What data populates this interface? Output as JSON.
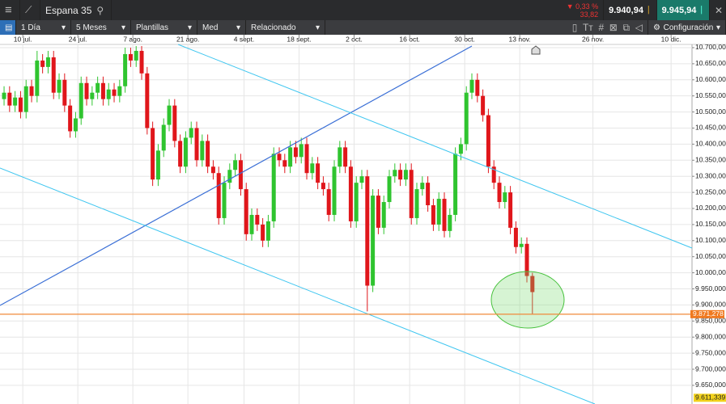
{
  "toolbar": {
    "symbol": "Espana 35",
    "change_pct": "▼ 0,33 %",
    "change_abs": "33,82",
    "sell": "9.940,94",
    "buy": "9.945,94",
    "interval": "1 Día",
    "range": "5 Meses",
    "templates": "Plantillas",
    "indicator": "Med",
    "related": "Relacionado",
    "settings": "Configuración"
  },
  "chart_data": {
    "type": "candlestick",
    "up_color": "#2fc42f",
    "down_color": "#e0161b",
    "grid": true,
    "x": [
      0,
      1,
      2,
      3,
      4,
      5,
      6,
      7,
      8,
      9,
      10,
      11,
      12,
      13,
      14,
      15,
      16,
      17,
      18,
      19,
      20,
      21,
      22,
      23,
      24,
      25,
      26,
      27,
      28,
      29,
      30,
      31,
      32,
      33,
      34,
      35,
      36,
      37,
      38,
      39,
      40,
      41,
      42,
      43,
      44,
      45,
      46,
      47,
      48,
      49,
      50,
      51,
      52,
      53,
      54,
      55,
      56,
      57,
      58,
      59,
      60,
      61,
      62,
      63,
      64,
      65,
      66,
      67,
      68,
      69,
      70,
      71,
      72,
      73,
      74,
      75,
      76,
      77,
      78,
      79,
      80,
      81,
      82,
      83,
      84,
      85,
      86,
      87,
      88,
      89,
      90,
      91,
      92,
      93,
      94,
      95,
      96
    ],
    "open": [
      10540,
      10560,
      10520,
      10545,
      10500,
      10580,
      10550,
      10660,
      10640,
      10670,
      10560,
      10600,
      10520,
      10440,
      10480,
      10590,
      10540,
      10560,
      10590,
      10540,
      10570,
      10550,
      10580,
      10680,
      10660,
      10690,
      10620,
      10450,
      10290,
      10380,
      10460,
      10520,
      10410,
      10330,
      10420,
      10450,
      10350,
      10410,
      10330,
      10310,
      10170,
      10280,
      10320,
      10350,
      10260,
      10120,
      10180,
      10150,
      10100,
      10160,
      10370,
      10350,
      10330,
      10390,
      10360,
      10400,
      10310,
      10340,
      10280,
      10260,
      10180,
      10330,
      10390,
      10330,
      10160,
      10280,
      10300,
      9960,
      10240,
      10140,
      10220,
      10300,
      10320,
      10290,
      10320,
      10170,
      10260,
      10280,
      10210,
      10150,
      10230,
      10130,
      10180,
      10370,
      10400,
      10560,
      10600,
      10550,
      10490,
      10330,
      10280,
      10220,
      10250,
      10140,
      10080,
      10090,
      9990
    ],
    "high": [
      10580,
      10580,
      10565,
      10565,
      10600,
      10600,
      10690,
      10680,
      10690,
      10690,
      10620,
      10620,
      10540,
      10500,
      10610,
      10610,
      10580,
      10610,
      10610,
      10590,
      10590,
      10600,
      10700,
      10700,
      10705,
      10705,
      10640,
      10470,
      10400,
      10480,
      10540,
      10540,
      10430,
      10440,
      10470,
      10470,
      10430,
      10430,
      10350,
      10330,
      10300,
      10340,
      10370,
      10370,
      10280,
      10200,
      10200,
      10170,
      10180,
      10390,
      10390,
      10370,
      10410,
      10410,
      10420,
      10420,
      10360,
      10360,
      10300,
      10280,
      10350,
      10410,
      10410,
      10350,
      10300,
      10320,
      10320,
      10260,
      10260,
      10240,
      10320,
      10340,
      10340,
      10340,
      10340,
      10280,
      10300,
      10300,
      10230,
      10250,
      10250,
      10200,
      10390,
      10420,
      10580,
      10620,
      10620,
      10570,
      10510,
      10350,
      10300,
      10270,
      10270,
      10160,
      10110,
      10110,
      10000
    ],
    "low": [
      10520,
      10500,
      10500,
      10480,
      10480,
      10530,
      10530,
      10620,
      10620,
      10540,
      10540,
      10500,
      10420,
      10420,
      10460,
      10520,
      10520,
      10540,
      10520,
      10520,
      10530,
      10530,
      10560,
      10640,
      10640,
      10600,
      10430,
      10270,
      10270,
      10360,
      10440,
      10390,
      10310,
      10310,
      10400,
      10330,
      10330,
      10310,
      10290,
      10150,
      10150,
      10260,
      10300,
      10240,
      10100,
      10100,
      10130,
      10080,
      10080,
      10140,
      10330,
      10310,
      10310,
      10340,
      10340,
      10290,
      10290,
      10260,
      10240,
      10160,
      10160,
      10310,
      10310,
      10140,
      10140,
      10260,
      9880,
      9940,
      10120,
      10120,
      10200,
      10280,
      10270,
      10270,
      10150,
      10150,
      10240,
      10190,
      10130,
      10130,
      10110,
      10110,
      10160,
      10350,
      10380,
      10540,
      10530,
      10470,
      10310,
      10260,
      10200,
      10200,
      10120,
      10060,
      10060,
      9970,
      9870
    ],
    "close": [
      10560,
      10520,
      10545,
      10500,
      10580,
      10550,
      10660,
      10640,
      10670,
      10560,
      10600,
      10520,
      10440,
      10480,
      10590,
      10540,
      10560,
      10590,
      10540,
      10570,
      10550,
      10580,
      10680,
      10660,
      10690,
      10620,
      10450,
      10290,
      10380,
      10460,
      10520,
      10410,
      10330,
      10420,
      10450,
      10350,
      10410,
      10330,
      10310,
      10170,
      10280,
      10320,
      10350,
      10260,
      10120,
      10180,
      10150,
      10100,
      10160,
      10370,
      10350,
      10330,
      10390,
      10360,
      10400,
      10310,
      10340,
      10280,
      10260,
      10180,
      10330,
      10390,
      10330,
      10160,
      10280,
      10300,
      9960,
      10240,
      10140,
      10220,
      10300,
      10320,
      10290,
      10320,
      10170,
      10260,
      10280,
      10210,
      10150,
      10230,
      10130,
      10180,
      10370,
      10400,
      10560,
      10600,
      10550,
      10490,
      10330,
      10280,
      10220,
      10250,
      10140,
      10080,
      10090,
      9990,
      9940
    ],
    "xlim": [
      -0.74,
      125
    ],
    "xticks": [
      {
        "value": 3.4,
        "label": "10 jul."
      },
      {
        "value": 13.4,
        "label": "24 jul."
      },
      {
        "value": 23.4,
        "label": "7 ago."
      },
      {
        "value": 33.4,
        "label": "21 ago."
      },
      {
        "value": 43.6,
        "label": "4 sept."
      },
      {
        "value": 53.6,
        "label": "18 sept."
      },
      {
        "value": 63.6,
        "label": "2 oct."
      },
      {
        "value": 73.7,
        "label": "16 oct."
      },
      {
        "value": 83.7,
        "label": "30 oct."
      },
      {
        "value": 93.7,
        "label": "13 nov."
      },
      {
        "value": 107,
        "label": "26 nov."
      },
      {
        "value": 121.2,
        "label": "10 dic."
      }
    ],
    "ylim": [
      9592,
      10710
    ],
    "yticks": [
      {
        "value": 10700,
        "label": "10.700,000"
      },
      {
        "value": 10650,
        "label": "10.650,000"
      },
      {
        "value": 10600,
        "label": "10.600,000"
      },
      {
        "value": 10550,
        "label": "10.550,000"
      },
      {
        "value": 10500,
        "label": "10.500,000"
      },
      {
        "value": 10450,
        "label": "10.450,000"
      },
      {
        "value": 10400,
        "label": "10.400,000"
      },
      {
        "value": 10350,
        "label": "10.350,000"
      },
      {
        "value": 10300,
        "label": "10.300,000"
      },
      {
        "value": 10250,
        "label": "10.250,000"
      },
      {
        "value": 10200,
        "label": "10.200,000"
      },
      {
        "value": 10150,
        "label": "10.150,000"
      },
      {
        "value": 10100,
        "label": "10.100,000"
      },
      {
        "value": 10050,
        "label": "10.050,000"
      },
      {
        "value": 10000,
        "label": "10.000,000"
      },
      {
        "value": 9950,
        "label": "9.950,000"
      },
      {
        "value": 9900,
        "label": "9.900,000"
      },
      {
        "value": 9850,
        "label": "9.850,000"
      },
      {
        "value": 9800,
        "label": "9.800,000"
      },
      {
        "value": 9750,
        "label": "9.750,000"
      },
      {
        "value": 9700,
        "label": "9.700,000"
      },
      {
        "value": 9650,
        "label": "9.650,000"
      }
    ],
    "current_price": {
      "value": 9871.278,
      "label": "9.871,278"
    },
    "marker_price": {
      "value": 9611.339,
      "label": "9.611,339"
    }
  }
}
